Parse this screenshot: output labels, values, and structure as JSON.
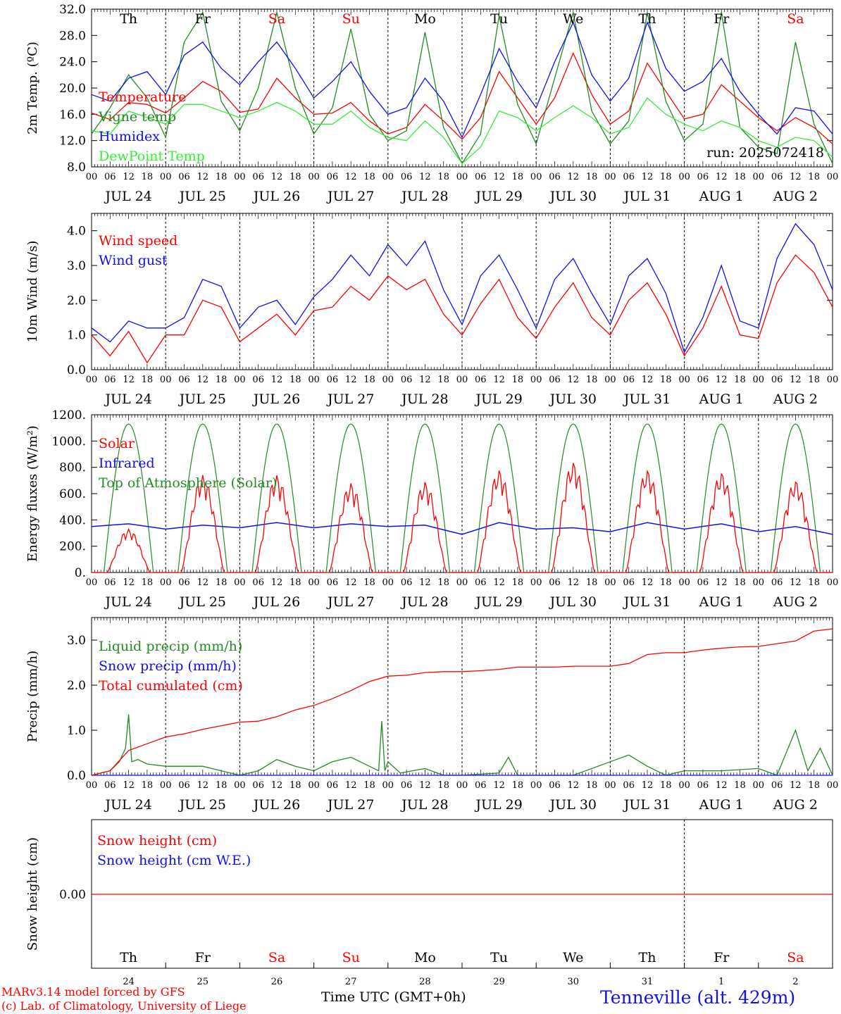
{
  "colors": {
    "red": "#ff0000",
    "green": "#228b22",
    "lightgreen": "#33ee33",
    "blue": "#1010ee",
    "axis": "#000000"
  },
  "footer": {
    "model": "MARv3.14 model forced by GFS",
    "lab": "(c) Lab. of Climatology, University of Liege",
    "xlabel": "Time UTC (GMT+0h)",
    "station": "Tenneville (alt. 429m)"
  },
  "run_label": "run: 2025072418",
  "days": {
    "weekday": [
      "Th",
      "Fr",
      "Sa",
      "Su",
      "Mo",
      "Tu",
      "We",
      "Th",
      "Fr",
      "Sa"
    ],
    "weekend_color": [
      "black",
      "black",
      "red",
      "red",
      "black",
      "black",
      "black",
      "black",
      "black",
      "red"
    ],
    "date": [
      "JUL 24",
      "JUL 25",
      "JUL 26",
      "JUL 27",
      "JUL 28",
      "JUL 29",
      "JUL 30",
      "JUL 31",
      "AUG  1",
      "AUG  2"
    ],
    "daynum": [
      "24",
      "25",
      "26",
      "27",
      "28",
      "29",
      "30",
      "31",
      "1",
      "2"
    ],
    "hours": [
      "00",
      "06",
      "12",
      "18"
    ]
  },
  "chart_data": [
    {
      "type": "line",
      "ylabel": "2m Temp. (ºC)",
      "ylim": [
        8,
        32
      ],
      "yticks": [
        "8.0",
        "12.0",
        "16.0",
        "20.0",
        "24.0",
        "28.0",
        "32.0"
      ],
      "x_unit": "hours from JUL 24 00 UTC",
      "series": [
        {
          "name": "Temperature",
          "color": "red",
          "x": [
            0,
            6,
            12,
            18,
            24,
            30,
            36,
            42,
            48,
            54,
            60,
            66,
            72,
            78,
            84,
            90,
            96,
            102,
            108,
            114,
            120,
            126,
            132,
            138,
            144,
            150,
            156,
            162,
            168,
            174,
            180,
            186,
            192,
            198,
            204,
            210,
            216,
            222,
            228,
            234,
            240
          ],
          "values": [
            16.2,
            15.2,
            17.8,
            17.5,
            16.2,
            18.5,
            21.0,
            19.5,
            16.3,
            16.8,
            21.5,
            18.5,
            16.0,
            16.2,
            17.8,
            15.0,
            13.0,
            14.0,
            17.5,
            15.0,
            12.2,
            15.5,
            22.5,
            18.5,
            14.5,
            18.5,
            25.3,
            19.0,
            14.5,
            16.5,
            23.8,
            19.5,
            15.3,
            16.0,
            20.5,
            18.0,
            15.5,
            13.5,
            15.5,
            14.0,
            11.5
          ]
        },
        {
          "name": "Vigne temp",
          "color": "green",
          "x": [
            0,
            6,
            12,
            18,
            24,
            30,
            36,
            42,
            48,
            54,
            60,
            66,
            72,
            78,
            84,
            90,
            96,
            102,
            108,
            114,
            120,
            126,
            132,
            138,
            144,
            150,
            156,
            162,
            168,
            174,
            180,
            186,
            192,
            198,
            204,
            210,
            216,
            222,
            228,
            234,
            240
          ],
          "values": [
            13.0,
            17.0,
            22.0,
            18.5,
            12.5,
            27.0,
            31.5,
            18.0,
            13.5,
            20.0,
            31.5,
            20.0,
            13.0,
            17.0,
            29.0,
            16.0,
            12.0,
            13.5,
            28.5,
            14.0,
            8.5,
            13.0,
            31.0,
            17.5,
            11.5,
            21.5,
            31.5,
            16.5,
            11.5,
            15.0,
            31.5,
            18.0,
            12.0,
            14.5,
            31.5,
            14.0,
            11.0,
            10.0,
            27.0,
            14.5,
            8.5
          ]
        },
        {
          "name": "Humidex",
          "color": "blue",
          "x": [
            0,
            6,
            12,
            18,
            24,
            30,
            36,
            42,
            48,
            54,
            60,
            66,
            72,
            78,
            84,
            90,
            96,
            102,
            108,
            114,
            120,
            126,
            132,
            138,
            144,
            150,
            156,
            162,
            168,
            174,
            180,
            186,
            192,
            198,
            204,
            210,
            216,
            222,
            228,
            234,
            240
          ],
          "values": [
            19.0,
            18.0,
            21.5,
            22.5,
            19.0,
            25.0,
            27.0,
            23.0,
            20.5,
            24.0,
            27.0,
            23.0,
            18.5,
            21.0,
            24.0,
            19.5,
            16.0,
            17.0,
            21.5,
            18.0,
            12.5,
            19.0,
            26.0,
            21.0,
            17.0,
            24.0,
            30.0,
            22.0,
            18.0,
            21.5,
            30.0,
            23.0,
            19.5,
            21.0,
            24.5,
            19.5,
            16.0,
            13.0,
            17.0,
            16.5,
            13.0
          ]
        },
        {
          "name": "DewPoint Temp",
          "color": "lightgreen",
          "x": [
            0,
            6,
            12,
            18,
            24,
            30,
            36,
            42,
            48,
            54,
            60,
            66,
            72,
            78,
            84,
            90,
            96,
            102,
            108,
            114,
            120,
            126,
            132,
            138,
            144,
            150,
            156,
            162,
            168,
            174,
            180,
            186,
            192,
            198,
            204,
            210,
            216,
            222,
            228,
            234,
            240
          ],
          "values": [
            13.5,
            13.0,
            16.5,
            15.5,
            14.5,
            17.5,
            17.5,
            16.5,
            15.5,
            16.5,
            17.8,
            16.5,
            14.5,
            14.5,
            16.5,
            14.0,
            12.5,
            12.0,
            15.0,
            12.5,
            8.5,
            11.0,
            16.5,
            15.5,
            13.5,
            15.5,
            17.3,
            15.5,
            13.0,
            14.0,
            18.5,
            16.0,
            14.5,
            13.5,
            15.0,
            14.0,
            12.0,
            11.0,
            12.5,
            12.0,
            9.5
          ]
        }
      ]
    },
    {
      "type": "line",
      "ylabel": "10m Wind (m/s)",
      "ylim": [
        0,
        4.5
      ],
      "yticks": [
        "0.0",
        "1.0",
        "2.0",
        "3.0",
        "4.0"
      ],
      "series": [
        {
          "name": "Wind speed",
          "color": "red",
          "x": [
            0,
            6,
            12,
            18,
            24,
            30,
            36,
            42,
            48,
            54,
            60,
            66,
            72,
            78,
            84,
            90,
            96,
            102,
            108,
            114,
            120,
            126,
            132,
            138,
            144,
            150,
            156,
            162,
            168,
            174,
            180,
            186,
            192,
            198,
            204,
            210,
            216,
            222,
            228,
            234,
            240
          ],
          "values": [
            1.0,
            0.4,
            1.1,
            0.2,
            1.0,
            1.0,
            2.0,
            1.8,
            0.8,
            1.2,
            1.6,
            1.0,
            1.7,
            1.8,
            2.4,
            2.0,
            2.7,
            2.3,
            2.6,
            1.6,
            1.0,
            1.9,
            2.6,
            1.5,
            0.9,
            1.8,
            2.5,
            1.5,
            1.0,
            2.0,
            2.5,
            1.6,
            0.4,
            1.2,
            2.4,
            1.0,
            0.9,
            2.5,
            3.3,
            2.8,
            1.8
          ]
        },
        {
          "name": "Wind gust",
          "color": "blue",
          "x": [
            0,
            6,
            12,
            18,
            24,
            30,
            36,
            42,
            48,
            54,
            60,
            66,
            72,
            78,
            84,
            90,
            96,
            102,
            108,
            114,
            120,
            126,
            132,
            138,
            144,
            150,
            156,
            162,
            168,
            174,
            180,
            186,
            192,
            198,
            204,
            210,
            216,
            222,
            228,
            234,
            240
          ],
          "values": [
            1.2,
            0.8,
            1.4,
            1.2,
            1.2,
            1.5,
            2.6,
            2.4,
            1.2,
            1.8,
            2.0,
            1.3,
            2.1,
            2.6,
            3.3,
            2.7,
            3.6,
            3.0,
            3.7,
            2.3,
            1.3,
            2.7,
            3.3,
            2.3,
            1.2,
            2.6,
            3.2,
            2.2,
            1.3,
            2.7,
            3.2,
            2.2,
            0.5,
            1.5,
            3.0,
            1.4,
            1.2,
            3.2,
            4.2,
            3.6,
            2.3
          ]
        }
      ]
    },
    {
      "type": "line",
      "ylabel": "Energy fluxes (W/m²)",
      "ylim": [
        0,
        1200
      ],
      "yticks": [
        "0.",
        "200.",
        "400.",
        "600.",
        "800.",
        "1000.",
        "1200."
      ],
      "series": [
        {
          "name": "Solar",
          "color": "red",
          "solar_peaks": [
            330,
            740,
            740,
            680,
            690,
            780,
            840,
            780,
            760,
            700
          ]
        },
        {
          "name": "Infrared",
          "color": "blue",
          "x": [
            0,
            12,
            24,
            36,
            48,
            60,
            72,
            84,
            96,
            108,
            120,
            132,
            144,
            156,
            168,
            180,
            192,
            204,
            216,
            228,
            240
          ],
          "values": [
            350,
            370,
            330,
            360,
            340,
            380,
            340,
            370,
            350,
            360,
            290,
            380,
            330,
            340,
            310,
            380,
            330,
            370,
            310,
            350,
            290
          ]
        },
        {
          "name": "Top of Atmosphere (Solar)",
          "color": "green",
          "peak": 1130
        }
      ]
    },
    {
      "type": "line",
      "ylabel": "Precip (mm/h)",
      "ylim": [
        0,
        3.5
      ],
      "yticks": [
        "0.0",
        "1.0",
        "2.0",
        "3.0"
      ],
      "series": [
        {
          "name": "Liquid precip (mm/h)",
          "color": "green",
          "x": [
            0,
            6,
            9,
            11,
            12,
            13,
            15,
            18,
            24,
            30,
            36,
            42,
            48,
            54,
            60,
            66,
            72,
            78,
            84,
            90,
            93,
            94,
            95,
            96,
            100,
            108,
            114,
            120,
            132,
            135,
            138,
            144,
            156,
            168,
            174,
            180,
            186,
            192,
            204,
            216,
            222,
            228,
            232,
            236,
            240
          ],
          "values": [
            0.0,
            0.1,
            0.3,
            0.6,
            1.35,
            0.3,
            0.35,
            0.25,
            0.2,
            0.2,
            0.2,
            0.1,
            0.0,
            0.1,
            0.35,
            0.2,
            0.1,
            0.3,
            0.4,
            0.2,
            0.1,
            1.2,
            0.1,
            0.3,
            0.05,
            0.15,
            0.0,
            0.0,
            0.05,
            0.4,
            0.0,
            0.0,
            0.0,
            0.3,
            0.45,
            0.2,
            0.0,
            0.1,
            0.1,
            0.15,
            0.0,
            1.0,
            0.1,
            0.6,
            0.0
          ]
        },
        {
          "name": "Snow precip (mm/h)",
          "color": "blue",
          "x": [
            0,
            240
          ],
          "values": [
            0,
            0
          ]
        },
        {
          "name": "Total cumulated (cm)",
          "color": "red",
          "x": [
            0,
            6,
            12,
            18,
            24,
            30,
            36,
            42,
            48,
            54,
            60,
            66,
            72,
            78,
            84,
            90,
            96,
            102,
            108,
            114,
            120,
            126,
            132,
            138,
            144,
            150,
            156,
            162,
            168,
            174,
            180,
            186,
            192,
            198,
            204,
            210,
            216,
            222,
            228,
            234,
            240
          ],
          "values": [
            0.0,
            0.1,
            0.55,
            0.7,
            0.85,
            0.92,
            1.02,
            1.1,
            1.18,
            1.2,
            1.3,
            1.45,
            1.55,
            1.7,
            1.88,
            2.08,
            2.2,
            2.22,
            2.28,
            2.3,
            2.3,
            2.32,
            2.35,
            2.4,
            2.4,
            2.4,
            2.42,
            2.42,
            2.42,
            2.48,
            2.68,
            2.72,
            2.72,
            2.78,
            2.82,
            2.85,
            2.86,
            2.92,
            2.98,
            3.2,
            3.25
          ]
        }
      ]
    },
    {
      "type": "line",
      "ylabel": "Snow height (cm)",
      "yticks": [
        "0.00"
      ],
      "series": [
        {
          "name": "Snow height (cm)",
          "color": "red",
          "x": [
            0,
            240
          ],
          "values": [
            0,
            0
          ]
        },
        {
          "name": "Snow height (cm W.E.)",
          "color": "blue",
          "x": [
            0,
            240
          ],
          "values": [
            0,
            0
          ]
        }
      ]
    }
  ]
}
